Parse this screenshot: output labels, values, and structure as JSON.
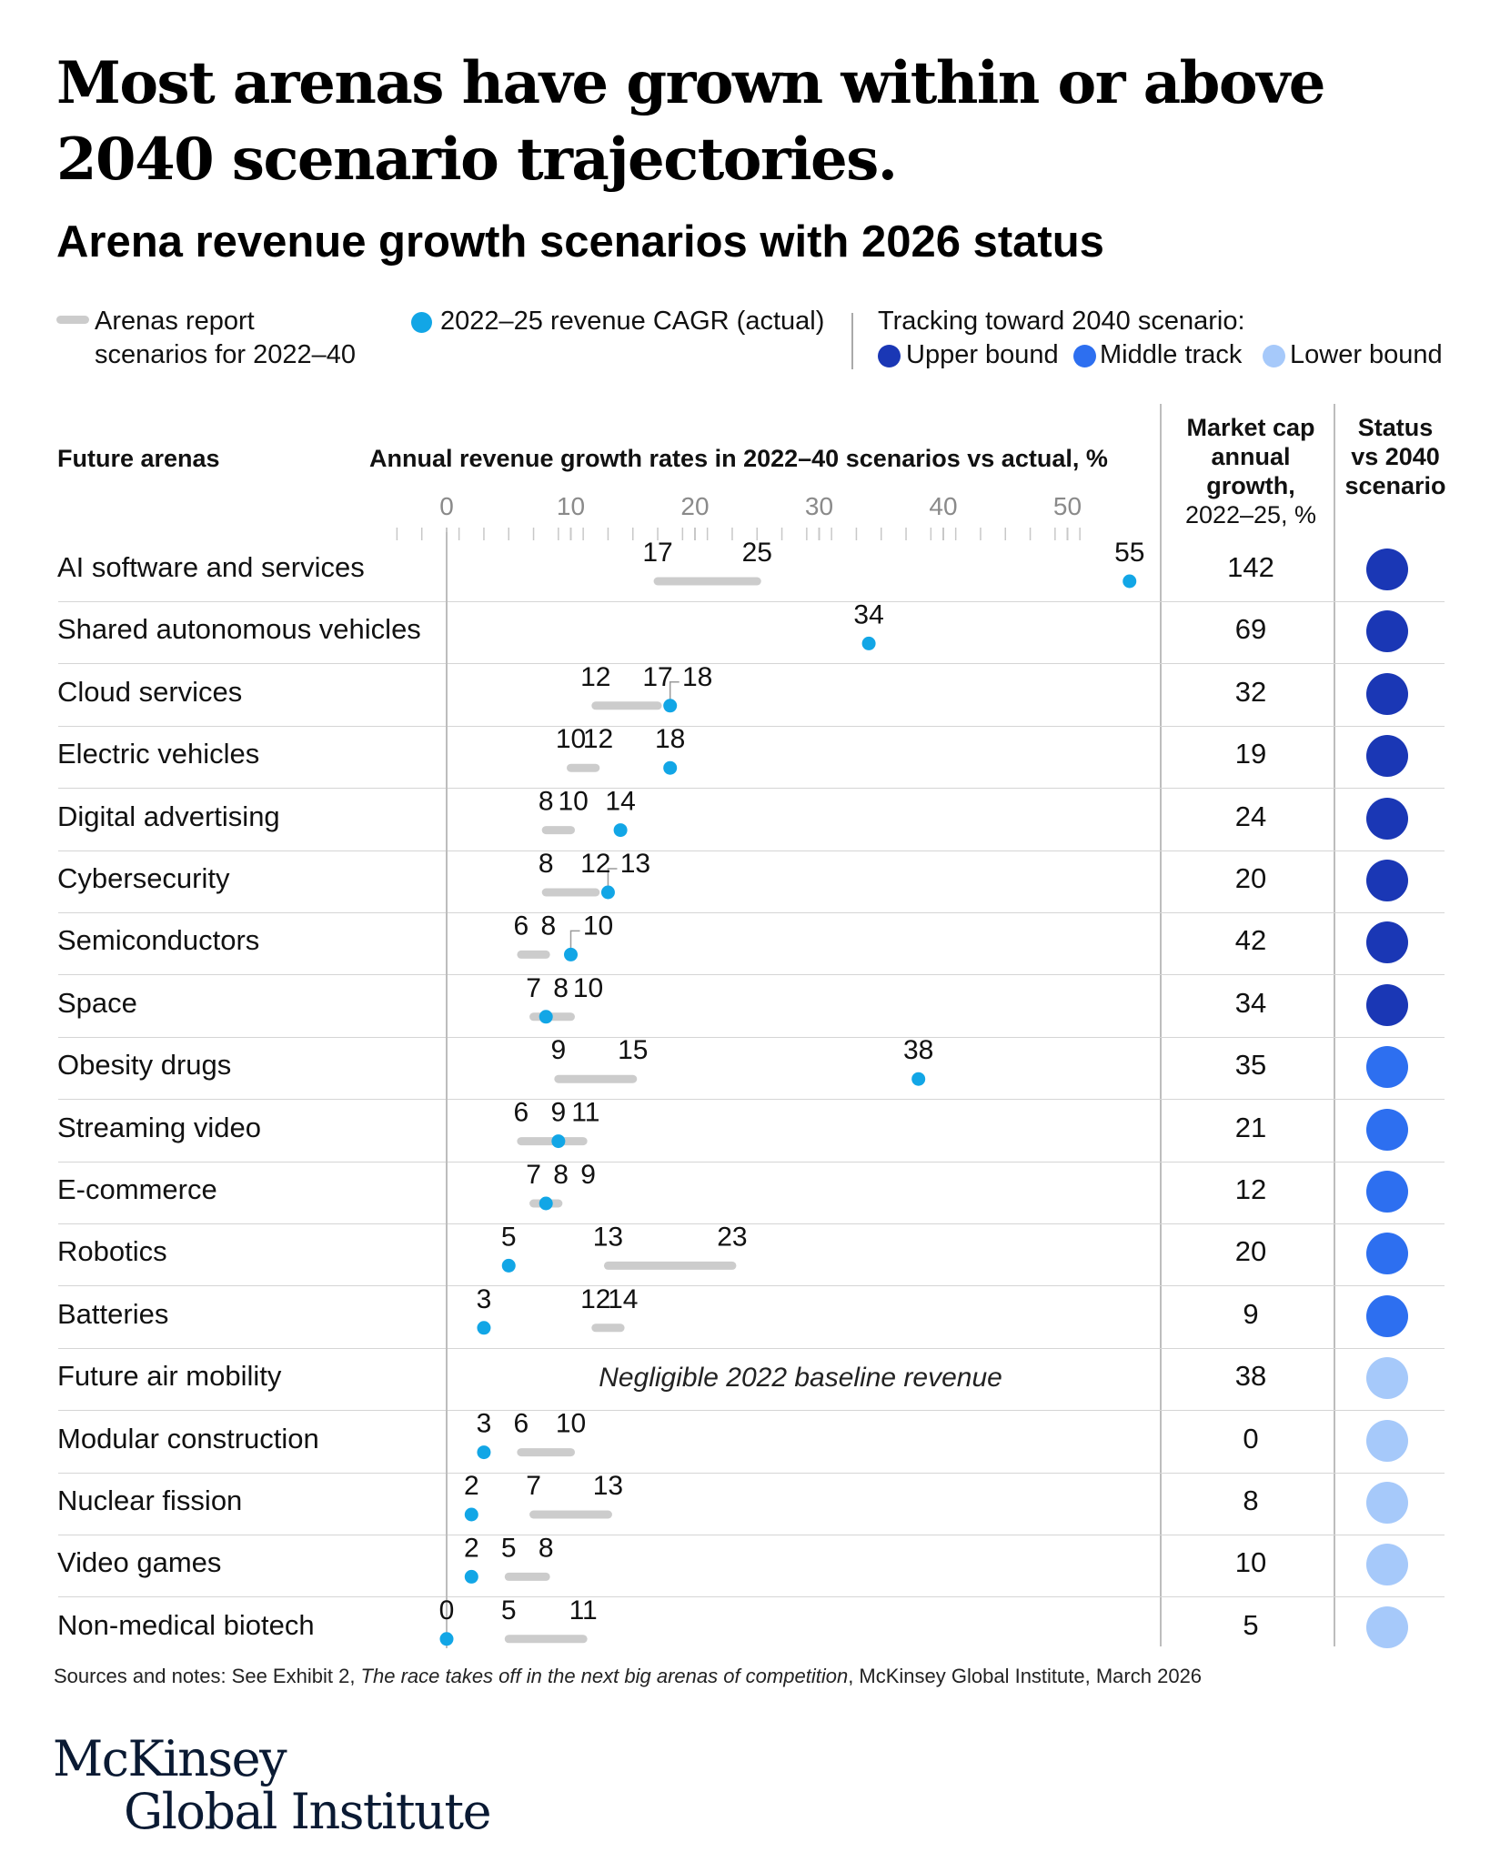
{
  "title": "Most arenas have grown within or above 2040 scenario trajectories.",
  "subtitle": "Arena revenue growth scenarios with 2026 status",
  "legend": {
    "scenarios_label_line1": "Arenas report",
    "scenarios_label_line2": "scenarios for 2022–40",
    "actual_label": "2022–25 revenue CAGR (actual)",
    "tracking_title": "Tracking toward 2040 scenario:",
    "upper_bound": "Upper bound",
    "middle_track": "Middle track",
    "lower_bound": "Lower bound"
  },
  "headers": {
    "arenas": "Future arenas",
    "growth_rates": "Annual revenue growth rates in 2022–40 scenarios vs actual, %",
    "mcap_line1": "Market cap",
    "mcap_line2": "annual",
    "mcap_line3": "growth,",
    "mcap_line4": "2022–25, %",
    "status_line1": "Status",
    "status_line2": "vs 2040",
    "status_line3": "scenario"
  },
  "colors": {
    "actual_dot": "#12a6e6",
    "range_bar": "#cccccc",
    "upper_bound": "#1a37b5",
    "middle_track": "#2d6ff0",
    "lower_bound": "#a6c9fa"
  },
  "negligible_note": "Negligible 2022 baseline revenue",
  "footnote_prefix": "Sources and notes: See Exhibit 2, ",
  "footnote_italic": "The race takes off in the next big arenas of competition",
  "footnote_suffix": ", McKinsey Global Institute, March 2026",
  "logo_line1": "McKinsey",
  "logo_line2": "Global Institute",
  "chart_data": {
    "type": "dot-range",
    "title": "Arena revenue growth scenarios with 2026 status",
    "xlabel": "Annual revenue growth rates in 2022–40 scenarios vs actual, %",
    "xlim": [
      0,
      55
    ],
    "xticks": [
      "0",
      "10",
      "20",
      "30",
      "40",
      "50"
    ],
    "rows": [
      {
        "arena": "AI software and services",
        "scenario_low": 17,
        "scenario_high": 25,
        "actual": 55,
        "market_cap_growth": "142",
        "status": "upper_bound",
        "labels": [
          "17",
          "25",
          "55"
        ]
      },
      {
        "arena": "Shared autonomous vehicles",
        "scenario_low": null,
        "scenario_high": null,
        "actual": 34,
        "market_cap_growth": "69",
        "status": "upper_bound",
        "labels": [
          "34"
        ]
      },
      {
        "arena": "Cloud services",
        "scenario_low": 12,
        "scenario_high": 17,
        "actual": 18,
        "market_cap_growth": "32",
        "status": "upper_bound",
        "labels": [
          "12",
          "17",
          "18"
        ]
      },
      {
        "arena": "Electric vehicles",
        "scenario_low": 10,
        "scenario_high": 12,
        "actual": 18,
        "market_cap_growth": "19",
        "status": "upper_bound",
        "labels": [
          "10",
          "12",
          "18"
        ]
      },
      {
        "arena": "Digital advertising",
        "scenario_low": 8,
        "scenario_high": 10,
        "actual": 14,
        "market_cap_growth": "24",
        "status": "upper_bound",
        "labels": [
          "8",
          "10",
          "14"
        ]
      },
      {
        "arena": "Cybersecurity",
        "scenario_low": 8,
        "scenario_high": 12,
        "actual": 13,
        "market_cap_growth": "20",
        "status": "upper_bound",
        "labels": [
          "8",
          "12",
          "13"
        ]
      },
      {
        "arena": "Semiconductors",
        "scenario_low": 6,
        "scenario_high": 8,
        "actual": 10,
        "market_cap_growth": "42",
        "status": "upper_bound",
        "labels": [
          "6",
          "8",
          "10"
        ]
      },
      {
        "arena": "Space",
        "scenario_low": 7,
        "scenario_high": 10,
        "actual": 8,
        "market_cap_growth": "34",
        "status": "upper_bound",
        "labels": [
          "7",
          "8",
          "10"
        ]
      },
      {
        "arena": "Obesity drugs",
        "scenario_low": 9,
        "scenario_high": 15,
        "actual": 38,
        "market_cap_growth": "35",
        "status": "middle_track",
        "labels": [
          "9",
          "15",
          "38"
        ]
      },
      {
        "arena": "Streaming video",
        "scenario_low": 6,
        "scenario_high": 11,
        "actual": 9,
        "market_cap_growth": "21",
        "status": "middle_track",
        "labels": [
          "6",
          "9",
          "11"
        ]
      },
      {
        "arena": "E-commerce",
        "scenario_low": 7,
        "scenario_high": 9,
        "actual": 8,
        "market_cap_growth": "12",
        "status": "middle_track",
        "labels": [
          "7",
          "8",
          "9"
        ]
      },
      {
        "arena": "Robotics",
        "scenario_low": 13,
        "scenario_high": 23,
        "actual": 5,
        "market_cap_growth": "20",
        "status": "middle_track",
        "labels": [
          "5",
          "13",
          "23"
        ]
      },
      {
        "arena": "Batteries",
        "scenario_low": 12,
        "scenario_high": 14,
        "actual": 3,
        "market_cap_growth": "9",
        "status": "middle_track",
        "labels": [
          "3",
          "12",
          "14"
        ]
      },
      {
        "arena": "Future air mobility",
        "scenario_low": null,
        "scenario_high": null,
        "actual": null,
        "market_cap_growth": "38",
        "status": "lower_bound",
        "labels": []
      },
      {
        "arena": "Modular construction",
        "scenario_low": 6,
        "scenario_high": 10,
        "actual": 3,
        "market_cap_growth": "0",
        "status": "lower_bound",
        "labels": [
          "3",
          "6",
          "10"
        ]
      },
      {
        "arena": "Nuclear fission",
        "scenario_low": 7,
        "scenario_high": 13,
        "actual": 2,
        "market_cap_growth": "8",
        "status": "lower_bound",
        "labels": [
          "2",
          "7",
          "13"
        ]
      },
      {
        "arena": "Video games",
        "scenario_low": 5,
        "scenario_high": 8,
        "actual": 2,
        "market_cap_growth": "10",
        "status": "lower_bound",
        "labels": [
          "2",
          "5",
          "8"
        ]
      },
      {
        "arena": "Non-medical biotech",
        "scenario_low": 5,
        "scenario_high": 11,
        "actual": 0,
        "market_cap_growth": "5",
        "status": "lower_bound",
        "labels": [
          "0",
          "5",
          "11"
        ]
      }
    ]
  }
}
